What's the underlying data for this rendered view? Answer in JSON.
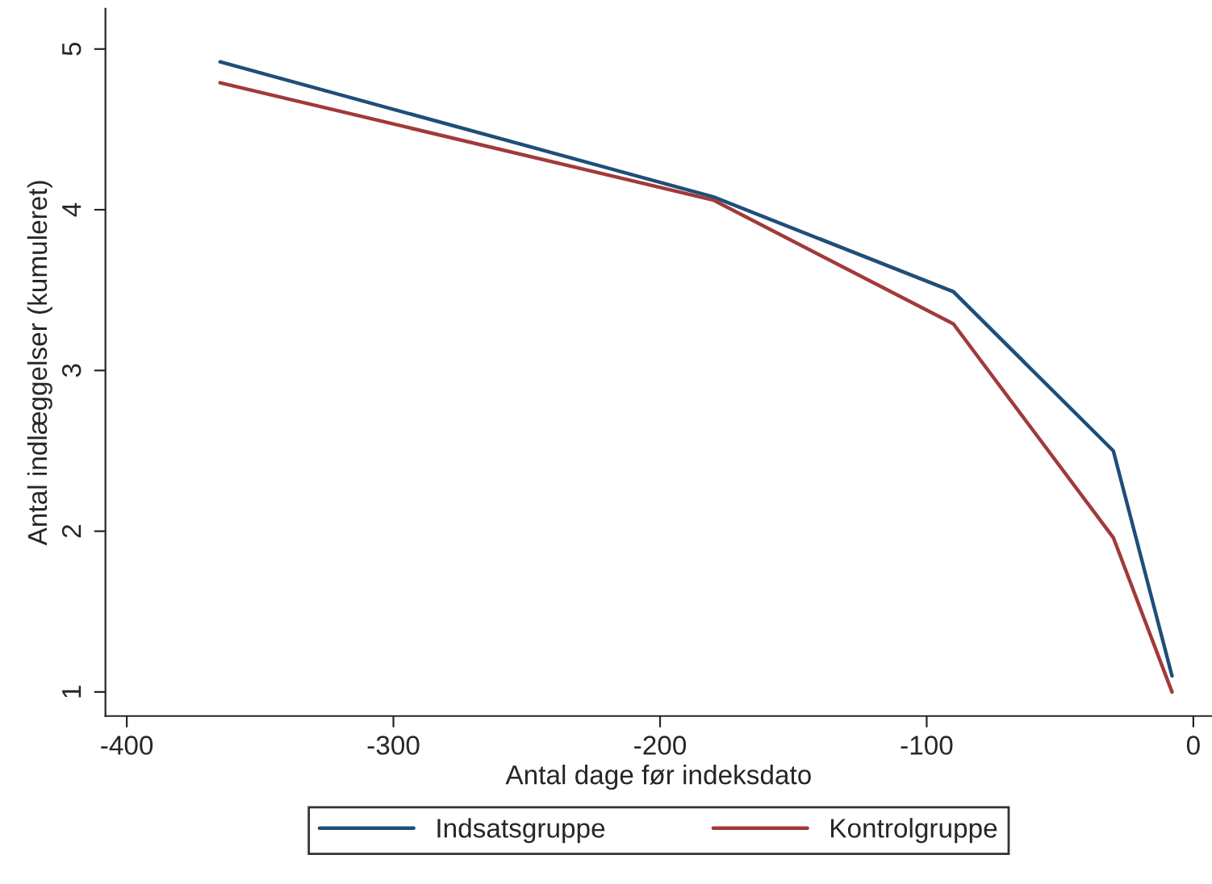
{
  "chart_data": {
    "type": "line",
    "xlabel": "Antal dage før indeksdato",
    "ylabel": "Antal indlæggelser (kumuleret)",
    "xlim": [
      -408,
      7
    ],
    "xticks": [
      -400,
      -300,
      -200,
      -100,
      0
    ],
    "ylim": [
      0.85,
      5.25
    ],
    "yticks": [
      1,
      2,
      3,
      4,
      5
    ],
    "grid": false,
    "legend": "bottom",
    "marker": "none",
    "line_style": "solid",
    "series": [
      {
        "name": "Indsatsgruppe",
        "color": "#1f4e79",
        "x": [
          -365,
          -180,
          -90,
          -30,
          -8
        ],
        "values": [
          4.92,
          4.08,
          3.49,
          2.5,
          1.1
        ]
      },
      {
        "name": "Kontrolgruppe",
        "color": "#a13a3a",
        "x": [
          -365,
          -180,
          -90,
          -30,
          -8
        ],
        "values": [
          4.79,
          4.06,
          3.29,
          1.96,
          1.0
        ]
      }
    ]
  }
}
